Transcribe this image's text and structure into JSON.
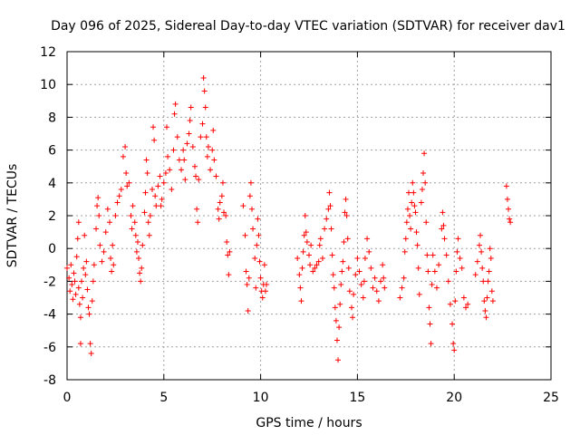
{
  "colors": {
    "series": "#ff0000",
    "grid": "#a0a0a0",
    "frame": "#000000",
    "background": "#ffffff"
  },
  "chart_data": {
    "type": "scatter",
    "title": "Day 096 of 2025, Sidereal Day-to-day VTEC variation (SDTVAR) for receiver dav1",
    "xlabel": "GPS time / hours",
    "ylabel": "SDTVAR / TECUs",
    "xlim": [
      0,
      25
    ],
    "ylim": [
      -8,
      12
    ],
    "xticks": [
      0,
      5,
      10,
      15,
      20,
      25
    ],
    "yticks": [
      -8,
      -6,
      -4,
      -2,
      0,
      2,
      4,
      6,
      8,
      10,
      12
    ],
    "grid": true,
    "marker": "plus",
    "series": [
      {
        "name": "SDTVAR",
        "points": [
          [
            0.0,
            -1.2
          ],
          [
            0.1,
            -1.8
          ],
          [
            0.15,
            -2.6
          ],
          [
            0.2,
            -1.0
          ],
          [
            0.25,
            -2.2
          ],
          [
            0.3,
            -3.1
          ],
          [
            0.35,
            -1.5
          ],
          [
            0.4,
            -2.0
          ],
          [
            0.45,
            -2.8
          ],
          [
            0.5,
            -0.5
          ],
          [
            0.55,
            0.6
          ],
          [
            0.6,
            1.6
          ],
          [
            0.6,
            -2.4
          ],
          [
            0.65,
            -3.4
          ],
          [
            0.7,
            -4.2
          ],
          [
            0.7,
            -5.8
          ],
          [
            0.75,
            -2.0
          ],
          [
            0.8,
            -3.0
          ],
          [
            0.85,
            -1.2
          ],
          [
            0.9,
            0.8
          ],
          [
            0.95,
            -1.6
          ],
          [
            1.0,
            -0.8
          ],
          [
            1.05,
            -2.5
          ],
          [
            1.1,
            -3.6
          ],
          [
            1.15,
            -4.0
          ],
          [
            1.2,
            -5.8
          ],
          [
            1.25,
            -6.4
          ],
          [
            1.3,
            -3.2
          ],
          [
            1.35,
            -2.0
          ],
          [
            1.4,
            -1.0
          ],
          [
            1.5,
            1.2
          ],
          [
            1.55,
            2.6
          ],
          [
            1.6,
            3.1
          ],
          [
            1.65,
            2.0
          ],
          [
            1.7,
            0.2
          ],
          [
            1.8,
            -0.8
          ],
          [
            1.9,
            -0.2
          ],
          [
            2.0,
            1.0
          ],
          [
            2.1,
            2.4
          ],
          [
            2.2,
            1.6
          ],
          [
            2.25,
            -0.6
          ],
          [
            2.3,
            -1.4
          ],
          [
            2.35,
            0.2
          ],
          [
            2.4,
            -1.0
          ],
          [
            2.5,
            2.0
          ],
          [
            2.6,
            2.8
          ],
          [
            2.7,
            3.2
          ],
          [
            2.8,
            3.6
          ],
          [
            2.9,
            5.6
          ],
          [
            3.0,
            6.2
          ],
          [
            3.05,
            4.6
          ],
          [
            3.1,
            3.8
          ],
          [
            3.2,
            4.0
          ],
          [
            3.3,
            2.0
          ],
          [
            3.35,
            1.2
          ],
          [
            3.4,
            2.6
          ],
          [
            3.5,
            1.6
          ],
          [
            3.55,
            0.8
          ],
          [
            3.6,
            -0.2
          ],
          [
            3.65,
            0.4
          ],
          [
            3.7,
            -0.6
          ],
          [
            3.75,
            -1.5
          ],
          [
            3.8,
            -2.0
          ],
          [
            3.85,
            -1.2
          ],
          [
            3.9,
            0.2
          ],
          [
            4.0,
            2.2
          ],
          [
            4.05,
            3.4
          ],
          [
            4.1,
            5.4
          ],
          [
            4.15,
            4.6
          ],
          [
            4.2,
            1.6
          ],
          [
            4.25,
            0.8
          ],
          [
            4.3,
            2.0
          ],
          [
            4.4,
            3.6
          ],
          [
            4.45,
            7.4
          ],
          [
            4.5,
            6.6
          ],
          [
            4.55,
            3.2
          ],
          [
            4.6,
            2.6
          ],
          [
            4.7,
            3.8
          ],
          [
            4.8,
            4.4
          ],
          [
            4.85,
            2.6
          ],
          [
            4.9,
            3.0
          ],
          [
            5.0,
            4.0
          ],
          [
            5.1,
            4.6
          ],
          [
            5.15,
            7.4
          ],
          [
            5.2,
            5.6
          ],
          [
            5.3,
            4.8
          ],
          [
            5.4,
            3.6
          ],
          [
            5.5,
            6.0
          ],
          [
            5.55,
            8.2
          ],
          [
            5.6,
            8.8
          ],
          [
            5.7,
            6.8
          ],
          [
            5.8,
            5.4
          ],
          [
            5.9,
            4.8
          ],
          [
            6.0,
            6.0
          ],
          [
            6.05,
            5.4
          ],
          [
            6.1,
            4.2
          ],
          [
            6.2,
            6.4
          ],
          [
            6.3,
            7.0
          ],
          [
            6.35,
            7.8
          ],
          [
            6.4,
            8.6
          ],
          [
            6.5,
            6.2
          ],
          [
            6.6,
            5.0
          ],
          [
            6.65,
            4.4
          ],
          [
            6.7,
            2.4
          ],
          [
            6.75,
            1.6
          ],
          [
            6.8,
            4.2
          ],
          [
            6.9,
            6.8
          ],
          [
            7.0,
            7.6
          ],
          [
            7.05,
            10.4
          ],
          [
            7.1,
            9.6
          ],
          [
            7.15,
            8.6
          ],
          [
            7.2,
            6.8
          ],
          [
            7.25,
            5.6
          ],
          [
            7.3,
            6.2
          ],
          [
            7.4,
            4.8
          ],
          [
            7.5,
            6.0
          ],
          [
            7.55,
            7.2
          ],
          [
            7.6,
            5.4
          ],
          [
            7.7,
            4.4
          ],
          [
            7.8,
            2.4
          ],
          [
            7.85,
            1.8
          ],
          [
            7.9,
            2.8
          ],
          [
            8.0,
            3.2
          ],
          [
            8.05,
            4.0
          ],
          [
            8.1,
            2.2
          ],
          [
            8.2,
            2.0
          ],
          [
            8.25,
            0.4
          ],
          [
            8.3,
            -0.4
          ],
          [
            8.35,
            -1.6
          ],
          [
            8.4,
            -0.2
          ],
          [
            9.1,
            2.6
          ],
          [
            9.2,
            0.8
          ],
          [
            9.25,
            -1.4
          ],
          [
            9.3,
            -2.2
          ],
          [
            9.35,
            -3.8
          ],
          [
            9.4,
            -1.8
          ],
          [
            9.45,
            3.2
          ],
          [
            9.5,
            4.0
          ],
          [
            9.55,
            2.4
          ],
          [
            9.6,
            1.2
          ],
          [
            9.7,
            -0.6
          ],
          [
            9.75,
            -2.4
          ],
          [
            9.8,
            0.2
          ],
          [
            9.85,
            1.8
          ],
          [
            9.9,
            0.8
          ],
          [
            9.95,
            -0.8
          ],
          [
            10.0,
            -1.8
          ],
          [
            10.05,
            -2.6
          ],
          [
            10.1,
            -3.0
          ],
          [
            10.15,
            -2.2
          ],
          [
            10.2,
            -1.0
          ],
          [
            10.25,
            -2.6
          ],
          [
            10.3,
            -2.2
          ],
          [
            11.9,
            -0.6
          ],
          [
            12.0,
            -1.6
          ],
          [
            12.05,
            -2.4
          ],
          [
            12.1,
            -3.2
          ],
          [
            12.15,
            -1.2
          ],
          [
            12.2,
            -0.2
          ],
          [
            12.25,
            0.8
          ],
          [
            12.3,
            2.0
          ],
          [
            12.35,
            1.0
          ],
          [
            12.4,
            0.4
          ],
          [
            12.5,
            -0.4
          ],
          [
            12.55,
            -1.0
          ],
          [
            12.6,
            0.2
          ],
          [
            12.7,
            -1.4
          ],
          [
            12.8,
            -1.2
          ],
          [
            12.9,
            -1.0
          ],
          [
            13.0,
            -0.8
          ],
          [
            13.05,
            0.2
          ],
          [
            13.1,
            0.6
          ],
          [
            13.2,
            -0.6
          ],
          [
            13.3,
            1.2
          ],
          [
            13.4,
            1.8
          ],
          [
            13.5,
            2.4
          ],
          [
            13.55,
            3.4
          ],
          [
            13.6,
            2.6
          ],
          [
            13.65,
            1.2
          ],
          [
            13.7,
            -0.4
          ],
          [
            13.75,
            -1.6
          ],
          [
            13.8,
            -2.4
          ],
          [
            13.85,
            -3.6
          ],
          [
            13.9,
            -4.4
          ],
          [
            13.95,
            -5.6
          ],
          [
            14.0,
            -6.8
          ],
          [
            14.05,
            -4.8
          ],
          [
            14.1,
            -3.4
          ],
          [
            14.15,
            -2.2
          ],
          [
            14.2,
            -1.4
          ],
          [
            14.25,
            -0.8
          ],
          [
            14.3,
            0.4
          ],
          [
            14.35,
            2.2
          ],
          [
            14.4,
            3.0
          ],
          [
            14.45,
            2.0
          ],
          [
            14.5,
            0.6
          ],
          [
            14.55,
            -1.2
          ],
          [
            14.6,
            -2.6
          ],
          [
            14.7,
            -3.6
          ],
          [
            14.75,
            -4.2
          ],
          [
            14.8,
            -2.8
          ],
          [
            14.9,
            -1.6
          ],
          [
            15.0,
            -0.6
          ],
          [
            15.1,
            -1.4
          ],
          [
            15.2,
            -2.2
          ],
          [
            15.3,
            -3.0
          ],
          [
            15.35,
            -2.0
          ],
          [
            15.4,
            -0.6
          ],
          [
            15.5,
            0.6
          ],
          [
            15.6,
            -0.2
          ],
          [
            15.7,
            -1.2
          ],
          [
            15.8,
            -2.4
          ],
          [
            15.9,
            -1.8
          ],
          [
            16.0,
            -2.6
          ],
          [
            16.1,
            -3.2
          ],
          [
            16.2,
            -2.0
          ],
          [
            16.3,
            -1.0
          ],
          [
            16.35,
            -1.8
          ],
          [
            16.4,
            -2.4
          ],
          [
            17.2,
            -3.0
          ],
          [
            17.3,
            -2.4
          ],
          [
            17.4,
            -1.8
          ],
          [
            17.45,
            -0.2
          ],
          [
            17.5,
            0.6
          ],
          [
            17.55,
            1.6
          ],
          [
            17.6,
            2.4
          ],
          [
            17.65,
            3.4
          ],
          [
            17.7,
            2.0
          ],
          [
            17.75,
            1.2
          ],
          [
            17.8,
            2.8
          ],
          [
            17.85,
            4.0
          ],
          [
            17.9,
            3.4
          ],
          [
            17.95,
            2.6
          ],
          [
            18.0,
            2.2
          ],
          [
            18.05,
            1.0
          ],
          [
            18.1,
            0.2
          ],
          [
            18.15,
            -1.2
          ],
          [
            18.2,
            -2.8
          ],
          [
            18.3,
            2.8
          ],
          [
            18.35,
            3.6
          ],
          [
            18.4,
            4.6
          ],
          [
            18.45,
            5.8
          ],
          [
            18.5,
            4.0
          ],
          [
            18.55,
            1.6
          ],
          [
            18.6,
            -0.4
          ],
          [
            18.65,
            -1.4
          ],
          [
            18.7,
            -3.6
          ],
          [
            18.75,
            -4.6
          ],
          [
            18.8,
            -5.8
          ],
          [
            18.85,
            -2.2
          ],
          [
            18.9,
            -0.4
          ],
          [
            19.0,
            -1.4
          ],
          [
            19.1,
            -2.4
          ],
          [
            19.2,
            -1.0
          ],
          [
            19.35,
            1.2
          ],
          [
            19.4,
            2.2
          ],
          [
            19.45,
            1.4
          ],
          [
            19.5,
            0.6
          ],
          [
            19.6,
            -0.4
          ],
          [
            19.7,
            -2.0
          ],
          [
            19.8,
            -3.4
          ],
          [
            19.9,
            -4.6
          ],
          [
            19.95,
            -5.8
          ],
          [
            20.0,
            -6.2
          ],
          [
            20.05,
            -3.2
          ],
          [
            20.1,
            -1.4
          ],
          [
            20.15,
            -0.2
          ],
          [
            20.2,
            0.6
          ],
          [
            20.3,
            -0.6
          ],
          [
            20.4,
            -1.2
          ],
          [
            20.5,
            -3.0
          ],
          [
            20.6,
            -3.6
          ],
          [
            20.7,
            -3.4
          ],
          [
            21.1,
            -1.6
          ],
          [
            21.2,
            -0.8
          ],
          [
            21.3,
            0.2
          ],
          [
            21.35,
            0.8
          ],
          [
            21.4,
            -0.2
          ],
          [
            21.45,
            -1.2
          ],
          [
            21.5,
            -2.0
          ],
          [
            21.55,
            -3.2
          ],
          [
            21.6,
            -3.8
          ],
          [
            21.65,
            -4.2
          ],
          [
            21.7,
            -3.0
          ],
          [
            21.75,
            -2.0
          ],
          [
            21.8,
            -1.4
          ],
          [
            21.85,
            0.0
          ],
          [
            21.9,
            -0.6
          ],
          [
            21.95,
            -2.6
          ],
          [
            22.0,
            -3.2
          ],
          [
            22.7,
            3.8
          ],
          [
            22.75,
            3.0
          ],
          [
            22.8,
            2.4
          ],
          [
            22.85,
            1.8
          ],
          [
            22.9,
            1.6
          ]
        ]
      }
    ]
  }
}
